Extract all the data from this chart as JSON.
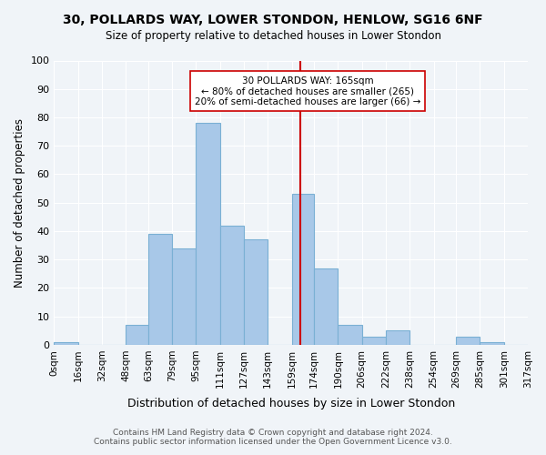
{
  "title": "30, POLLARDS WAY, LOWER STONDON, HENLOW, SG16 6NF",
  "subtitle": "Size of property relative to detached houses in Lower Stondon",
  "xlabel": "Distribution of detached houses by size in Lower Stondon",
  "ylabel": "Number of detached properties",
  "bar_color": "#a8c8e8",
  "bar_edge_color": "#7ab0d4",
  "background_color": "#f0f4f8",
  "grid_color": "#ffffff",
  "bin_edges": [
    0,
    16,
    32,
    48,
    63,
    79,
    95,
    111,
    127,
    143,
    159,
    174,
    190,
    206,
    222,
    238,
    254,
    269,
    285,
    301,
    317
  ],
  "bin_labels": [
    "0sqm",
    "16sqm",
    "32sqm",
    "48sqm",
    "63sqm",
    "79sqm",
    "95sqm",
    "111sqm",
    "127sqm",
    "143sqm",
    "159sqm",
    "174sqm",
    "190sqm",
    "206sqm",
    "222sqm",
    "238sqm",
    "254sqm",
    "269sqm",
    "285sqm",
    "301sqm",
    "317sqm"
  ],
  "counts": [
    1,
    0,
    0,
    7,
    39,
    34,
    78,
    42,
    37,
    0,
    53,
    27,
    7,
    3,
    5,
    0,
    0,
    3,
    1,
    0
  ],
  "property_size": 165,
  "property_label": "30 POLLARDS WAY: 165sqm",
  "annotation_line1": "← 80% of detached houses are smaller (265)",
  "annotation_line2": "20% of semi-detached houses are larger (66) →",
  "vline_color": "#cc0000",
  "annotation_box_edge": "#cc0000",
  "ylim": [
    0,
    100
  ],
  "yticks": [
    0,
    10,
    20,
    30,
    40,
    50,
    60,
    70,
    80,
    90,
    100
  ],
  "footer_line1": "Contains HM Land Registry data © Crown copyright and database right 2024.",
  "footer_line2": "Contains public sector information licensed under the Open Government Licence v3.0."
}
